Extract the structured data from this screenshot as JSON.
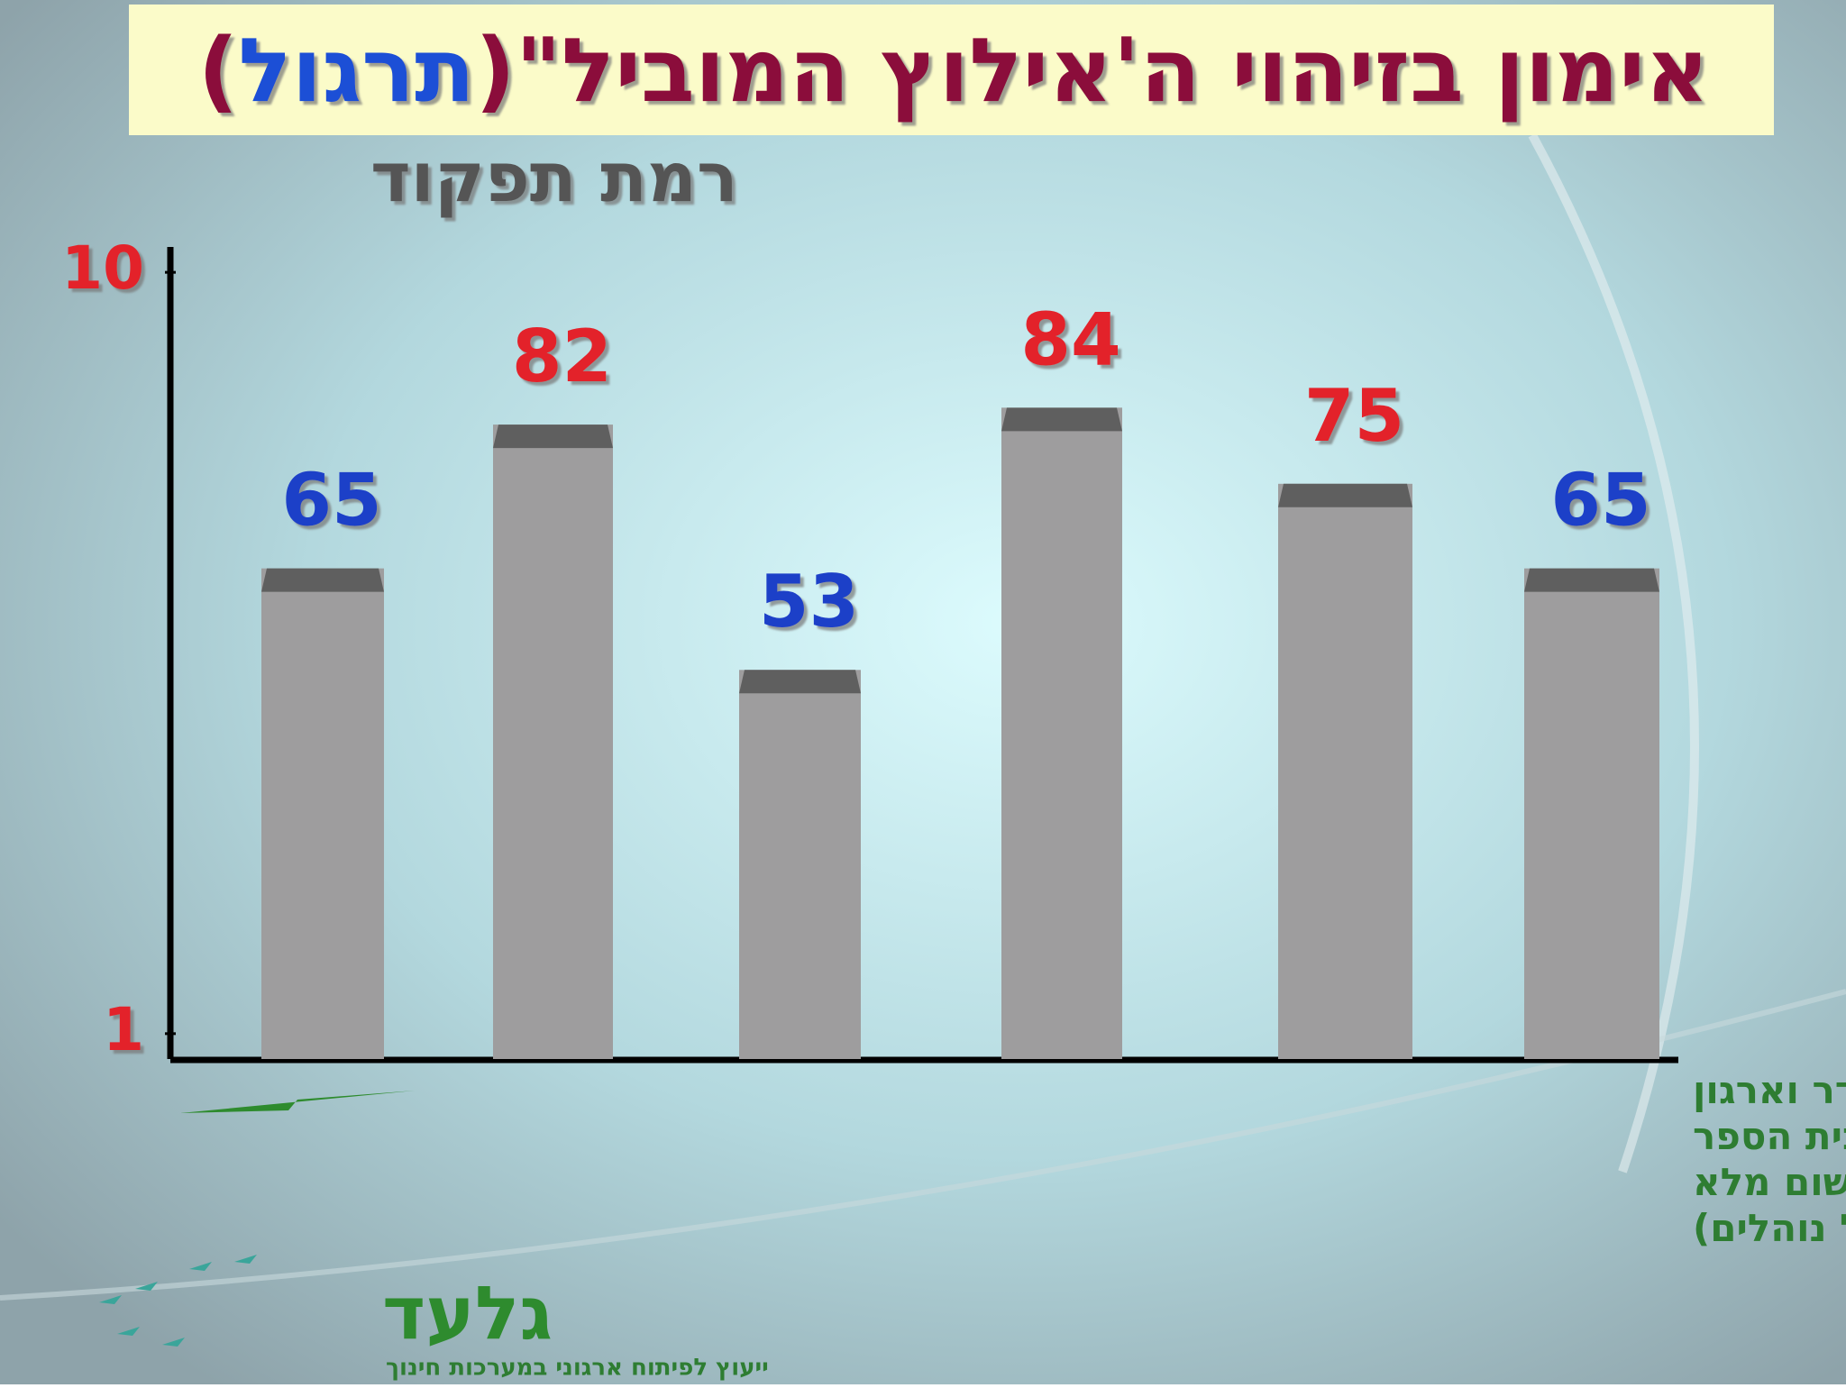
{
  "chart_data": {
    "type": "bar",
    "title_parts": [
      "אימון בזיהוי ה'אילוץ המוביל\"(",
      "תרגול",
      ")"
    ],
    "title_colors": [
      "#8b0a3a",
      "#1f4fd6",
      "#8b0a3a"
    ],
    "y_label": "רמת תפקוד",
    "categories": [
      null,
      null,
      null,
      null,
      null,
      "סדר וארגון בבית הספר (ישום מלא של נוהלים)"
    ],
    "category_lines": [
      "סדר וארגון",
      "בבית הספר",
      "(ישום מלא",
      "של נוהלים)"
    ],
    "values": [
      6.5,
      8.2,
      5.3,
      8.4,
      7.5,
      6.5
    ],
    "value_labels": [
      "65",
      "82",
      "53",
      "84",
      "75",
      "65"
    ],
    "label_colors": [
      "#1f3fc8",
      "#e3202a",
      "#1f3fc8",
      "#e3202a",
      "#e3202a",
      "#1f3fc8"
    ],
    "color": "#9e9d9e",
    "ylim": [
      0.7,
      10.3
    ],
    "yticks": [
      1,
      10
    ],
    "logo": {
      "name": "גלעד",
      "tagline": "ייעוץ לפיתוח ארגוני במערכות חינוך"
    }
  }
}
